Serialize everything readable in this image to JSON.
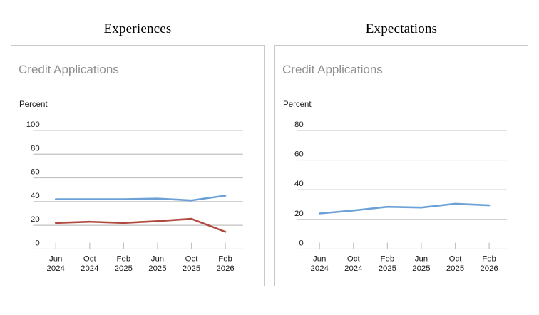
{
  "panels": [
    {
      "title": "Experiences",
      "header": "Credit Applications",
      "unit_label": "Percent"
    },
    {
      "title": "Expectations",
      "header": "Credit Applications",
      "unit_label": "Percent"
    }
  ],
  "colors": {
    "series_blue": "#6ba1d6",
    "series_red": "#b04a3f",
    "gridline": "#c2c2c2",
    "axis_text": "#191919",
    "header_text": "#8f8f8f",
    "panel_border": "#c9c9c9"
  },
  "chart_data": [
    {
      "type": "line",
      "title": "Experiences",
      "subtitle": "Credit Applications",
      "ylabel": "Percent",
      "ylim": [
        0,
        100
      ],
      "ytick_step": 20,
      "grid": true,
      "legend": "none",
      "categories": [
        "Jun 2024",
        "Oct 2024",
        "Feb 2025",
        "Jun 2025",
        "Oct 2025",
        "Feb 2026"
      ],
      "series": [
        {
          "name": "series-1",
          "color": "#6ba1d6",
          "values": [
            42,
            42,
            42,
            42.5,
            41,
            45
          ]
        },
        {
          "name": "series-2",
          "color": "#b04a3f",
          "values": [
            22,
            23,
            22,
            23.5,
            25.5,
            14.5
          ]
        }
      ]
    },
    {
      "type": "line",
      "title": "Expectations",
      "subtitle": "Credit Applications",
      "ylabel": "Percent",
      "ylim": [
        0,
        80
      ],
      "ytick_step": 20,
      "grid": true,
      "legend": "none",
      "categories": [
        "Jun 2024",
        "Oct 2024",
        "Feb 2025",
        "Jun 2025",
        "Oct 2025",
        "Feb 2026"
      ],
      "series": [
        {
          "name": "series-1",
          "color": "#6ba1d6",
          "values": [
            24,
            26,
            28.5,
            28,
            30.5,
            29.5
          ]
        }
      ]
    }
  ]
}
